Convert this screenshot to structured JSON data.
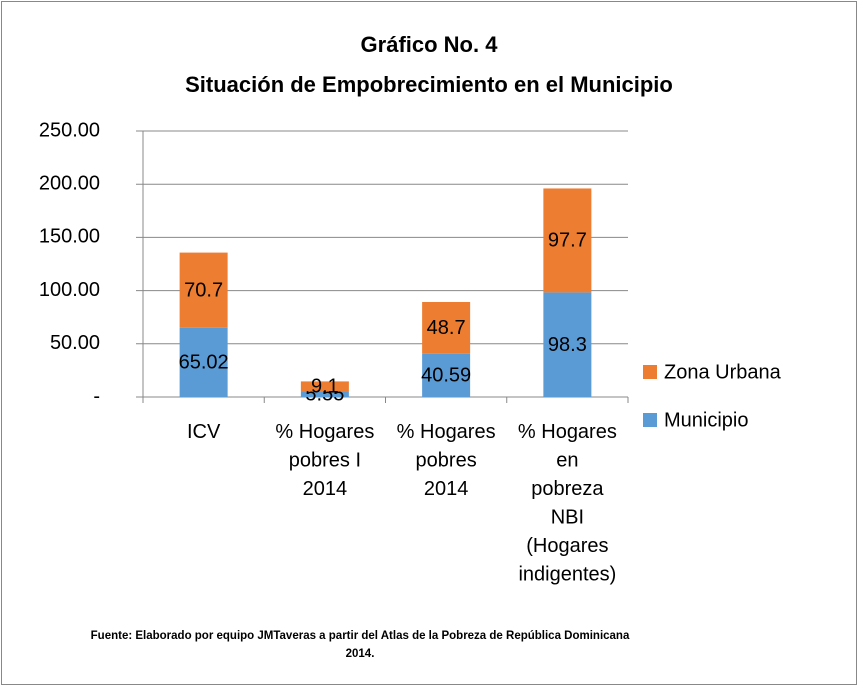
{
  "chart_data": {
    "type": "stacked_bar",
    "title": "Gráfico No. 4",
    "subtitle": "Situación de Empobrecimiento en el Municipio",
    "categories": [
      "ICV",
      "% Hogares pobres I 2014",
      "% Hogares pobres 2014",
      "% Hogares en pobreza NBI (Hogares indigentes)"
    ],
    "series": [
      {
        "name": "Municipio",
        "color": "#5b9bd5",
        "values": [
          65.02,
          5.55,
          40.59,
          98.3
        ]
      },
      {
        "name": "Zona Urbana",
        "color": "#ed7d31",
        "values": [
          70.7,
          9.1,
          48.7,
          97.7
        ]
      }
    ],
    "ylim": [
      0,
      250
    ],
    "yticks": [
      {
        "value": 0,
        "label": "-"
      },
      {
        "value": 50,
        "label": "50.00"
      },
      {
        "value": 100,
        "label": "100.00"
      },
      {
        "value": 150,
        "label": "150.00"
      },
      {
        "value": 200,
        "label": "200.00"
      },
      {
        "value": 250,
        "label": "250.00"
      }
    ],
    "grid": true,
    "legend": "right",
    "source": [
      "Fuente: Elaborado por equipo JMTaveras a partir del Atlas de la Pobreza de República Dominicana",
      "2014."
    ]
  }
}
